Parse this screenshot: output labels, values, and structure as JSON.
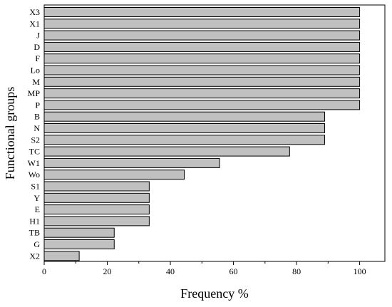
{
  "chart_data": {
    "type": "bar",
    "orientation": "horizontal",
    "categories": [
      "X3",
      "X1",
      "J",
      "D",
      "F",
      "Lo",
      "M",
      "MP",
      "P",
      "B",
      "N",
      "S2",
      "TC",
      "W1",
      "Wo",
      "S1",
      "Y",
      "E",
      "H1",
      "TB",
      "G",
      "X2"
    ],
    "values": [
      100,
      100,
      100,
      100,
      100,
      100,
      100,
      100,
      100,
      88.9,
      88.9,
      88.9,
      77.8,
      55.6,
      44.4,
      33.3,
      33.3,
      33.3,
      33.3,
      22.2,
      22.2,
      11.1
    ],
    "xlabel": "Frequency %",
    "ylabel": "Functional groups",
    "xlim": [
      0,
      108
    ],
    "xticks": [
      0,
      20,
      40,
      60,
      80,
      100
    ],
    "grid": false,
    "bar_color": "#c0c0c0",
    "edge_color": "#000000"
  }
}
